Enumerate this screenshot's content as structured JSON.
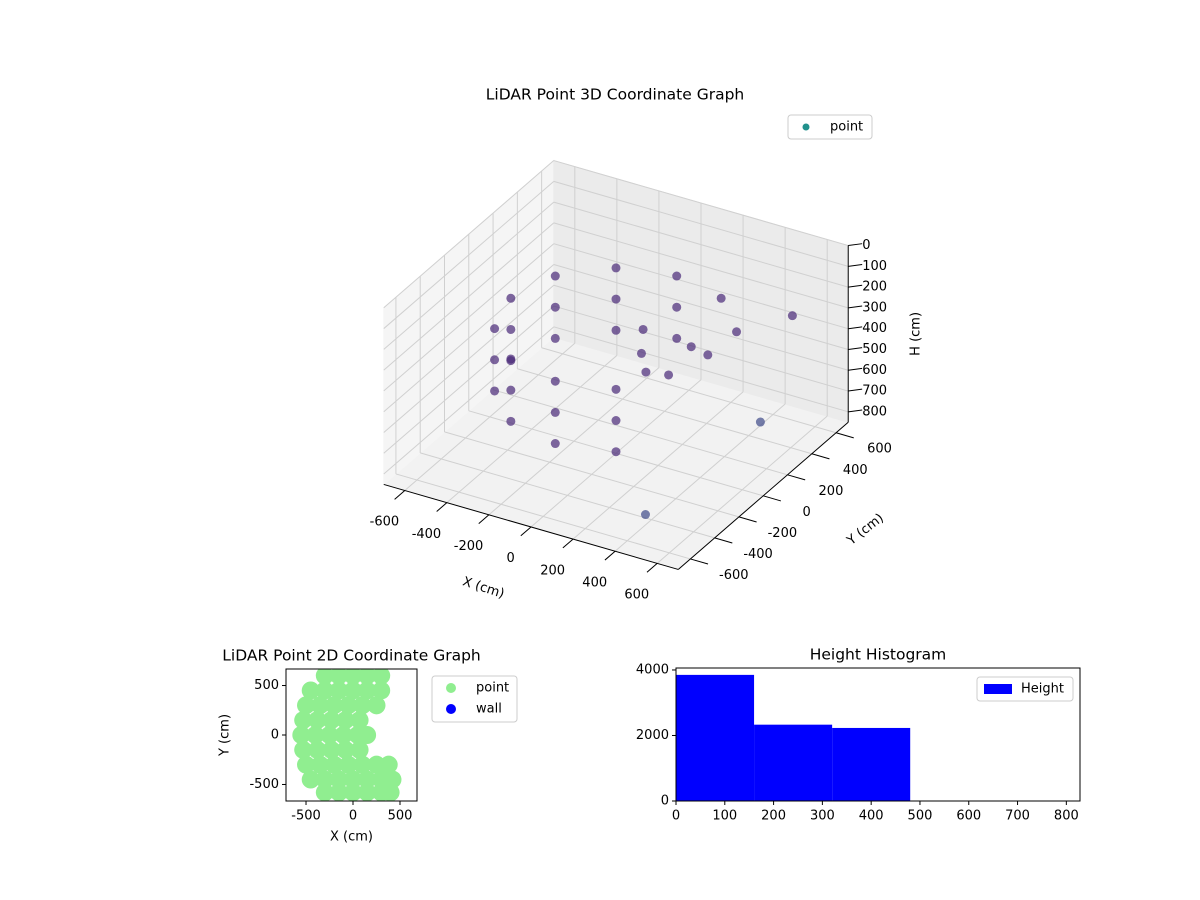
{
  "chart_data": [
    {
      "type": "scatter3d",
      "title": "LiDAR Point 3D Coordinate Graph",
      "legend_loc": "upper right",
      "xlabel": "X (cm)",
      "ylabel": "Y (cm)",
      "zlabel": "H (cm)",
      "xlim": [
        -700,
        700
      ],
      "ylim": [
        -700,
        700
      ],
      "zlim": [
        0,
        850
      ],
      "z_inverted": true,
      "xticks": [
        -600,
        -400,
        -200,
        0,
        200,
        400,
        600
      ],
      "yticks": [
        -600,
        -400,
        -200,
        0,
        200,
        400,
        600
      ],
      "zticks": [
        0,
        100,
        200,
        300,
        400,
        500,
        600,
        700,
        800
      ],
      "colormap": "viridis",
      "series": [
        {
          "name": "point",
          "color": "#21918c",
          "x": [
            0,
            -250,
            -433,
            -500,
            -433,
            -250,
            0,
            250,
            0,
            -250,
            -433,
            -500,
            -433,
            -250,
            0,
            250,
            0,
            -250,
            -433,
            -500,
            -433,
            -250,
            0,
            250,
            250,
            400,
            100,
            150,
            200,
            250,
            300,
            350,
            550,
            600,
            400
          ],
          "y": [
            500,
            433,
            250,
            0,
            -250,
            -433,
            -500,
            -433,
            500,
            433,
            250,
            0,
            -250,
            -433,
            -500,
            -433,
            500,
            433,
            250,
            0,
            -250,
            -433,
            -500,
            -433,
            433,
            300,
            50,
            -50,
            -100,
            0,
            100,
            150,
            500,
            150,
            -450
          ],
          "z": [
            250,
            250,
            250,
            250,
            250,
            250,
            250,
            250,
            400,
            400,
            400,
            400,
            400,
            400,
            400,
            400,
            550,
            550,
            550,
            550,
            550,
            550,
            550,
            550,
            250,
            300,
            250,
            300,
            350,
            400,
            300,
            350,
            280,
            600,
            800
          ]
        }
      ]
    },
    {
      "type": "scatter",
      "title": "LiDAR Point 2D Coordinate Graph",
      "legend_loc": "outside upper right",
      "xlabel": "X (cm)",
      "ylabel": "Y (cm)",
      "xlim": [
        -713,
        681
      ],
      "ylim": [
        -667,
        667
      ],
      "xticks": [
        -500,
        0,
        500
      ],
      "yticks": [
        -500,
        0,
        500
      ],
      "series": [
        {
          "name": "point",
          "color": "#90ee90",
          "x": [
            -300,
            -150,
            0,
            150,
            300,
            -450,
            -300,
            -150,
            0,
            150,
            300,
            -500,
            -350,
            -200,
            -50,
            100,
            250,
            -530,
            -380,
            -230,
            -80,
            70,
            -550,
            -400,
            -250,
            -100,
            50,
            150,
            -530,
            -380,
            -230,
            -80,
            70,
            -500,
            -350,
            -200,
            -50,
            100,
            250,
            380,
            -450,
            -300,
            -150,
            0,
            150,
            300,
            420,
            -300,
            -150,
            0,
            150,
            300,
            400
          ],
          "y": [
            600,
            600,
            600,
            600,
            600,
            450,
            450,
            450,
            450,
            450,
            450,
            300,
            300,
            300,
            300,
            300,
            300,
            150,
            150,
            150,
            150,
            150,
            0,
            0,
            0,
            0,
            0,
            0,
            -150,
            -150,
            -150,
            -150,
            -150,
            -300,
            -300,
            -300,
            -300,
            -300,
            -300,
            -300,
            -450,
            -450,
            -450,
            -450,
            -450,
            -450,
            -450,
            -580,
            -580,
            -580,
            -580,
            -580,
            -580
          ]
        },
        {
          "name": "wall",
          "color": "#0000ff",
          "x": [],
          "y": []
        }
      ]
    },
    {
      "type": "histogram",
      "title": "Height Histogram",
      "legend_loc": "upper right",
      "bins": [
        0,
        160,
        320,
        480,
        640,
        800
      ],
      "counts": [
        3850,
        2330,
        2230,
        0,
        2
      ],
      "series_name": "Height",
      "color": "#0000ff",
      "xlim": [
        0,
        828
      ],
      "ylim": [
        0,
        4060
      ],
      "xticks": [
        0,
        100,
        200,
        300,
        400,
        500,
        600,
        700,
        800
      ],
      "yticks": [
        0,
        2000,
        4000
      ]
    }
  ]
}
